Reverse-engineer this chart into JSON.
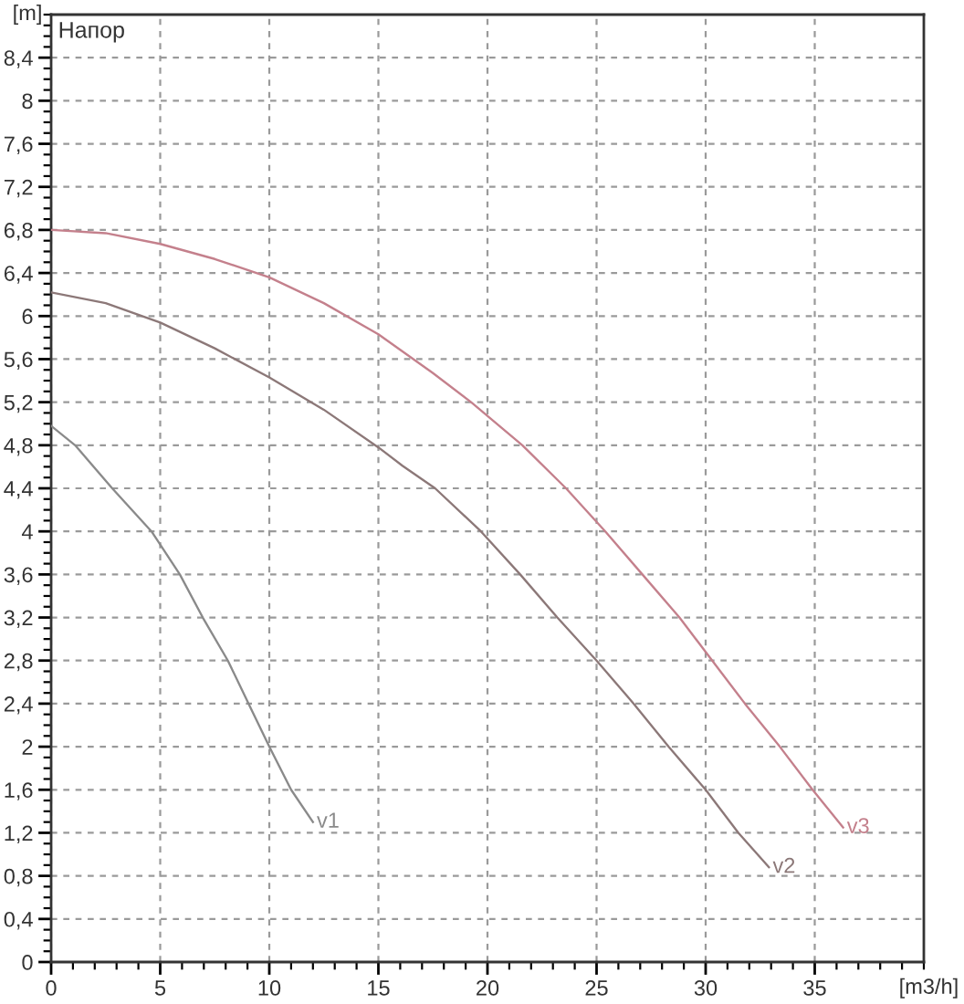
{
  "chart_data": {
    "type": "line",
    "title": "Напор",
    "xlabel": "[m3/h]",
    "ylabel": "[m]",
    "xlim": [
      0,
      40
    ],
    "xticks": [
      0,
      5,
      10,
      15,
      20,
      25,
      30,
      35
    ],
    "ylim": [
      0,
      8.8
    ],
    "yticks": [
      0,
      {
        "value": 0.4,
        "label": "0,4"
      },
      {
        "value": 0.8,
        "label": "0,8"
      },
      {
        "value": 1.2,
        "label": "1,2"
      },
      {
        "value": 1.6,
        "label": "1,6"
      },
      2,
      {
        "value": 2.4,
        "label": "2,4"
      },
      {
        "value": 2.8,
        "label": "2,8"
      },
      {
        "value": 3.2,
        "label": "3,2"
      },
      {
        "value": 3.6,
        "label": "3,6"
      },
      4,
      {
        "value": 4.4,
        "label": "4,4"
      },
      {
        "value": 4.8,
        "label": "4,8"
      },
      {
        "value": 5.2,
        "label": "5,2"
      },
      {
        "value": 5.6,
        "label": "5,6"
      },
      6,
      {
        "value": 6.4,
        "label": "6,4"
      },
      {
        "value": 6.8,
        "label": "6,8"
      },
      {
        "value": 7.2,
        "label": "7,2"
      },
      {
        "value": 7.6,
        "label": "7,6"
      },
      8,
      {
        "value": 8.4,
        "label": "8,4"
      }
    ],
    "grid": true,
    "line_style": "solid",
    "series": [
      {
        "name": "v1",
        "color": "#8a8a8a",
        "x": [
          0,
          1.1,
          2.8,
          4.6,
          5.9,
          6.95,
          8.1,
          9.05,
          10.0,
          11.0,
          12.0
        ],
        "values": [
          4.98,
          4.8,
          4.4,
          4.0,
          3.6,
          3.2,
          2.8,
          2.4,
          2.0,
          1.6,
          1.3
        ]
      },
      {
        "name": "v2",
        "color": "#8c7878",
        "x": [
          0,
          2.5,
          5,
          7.5,
          10,
          12.5,
          15,
          16.1,
          17.6,
          19.7,
          21.5,
          23.2,
          25.0,
          26.7,
          28.3,
          30.0,
          31.5,
          32.9
        ],
        "values": [
          6.22,
          6.12,
          5.94,
          5.7,
          5.43,
          5.13,
          4.78,
          4.61,
          4.4,
          4.0,
          3.6,
          3.2,
          2.8,
          2.4,
          2.0,
          1.6,
          1.2,
          0.88
        ]
      },
      {
        "name": "v3",
        "color": "#c4808c",
        "x": [
          0,
          2.5,
          5,
          7.5,
          10,
          12.5,
          15,
          17.5,
          19.25,
          21.6,
          23.6,
          25.4,
          27.1,
          28.8,
          30.3,
          31.8,
          33.4,
          34.9,
          36.3
        ],
        "values": [
          6.8,
          6.77,
          6.67,
          6.53,
          6.36,
          6.12,
          5.83,
          5.47,
          5.2,
          4.8,
          4.4,
          4.0,
          3.6,
          3.2,
          2.8,
          2.4,
          2.0,
          1.6,
          1.25
        ]
      }
    ]
  }
}
